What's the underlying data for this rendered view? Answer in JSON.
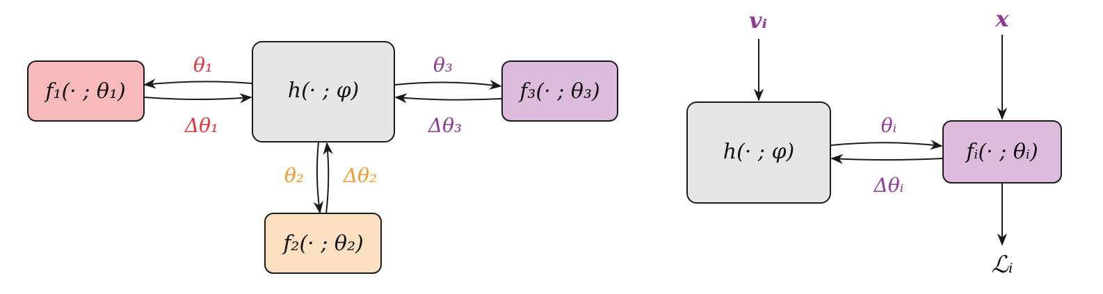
{
  "colors": {
    "box_stroke": "#1a1a1a",
    "h_fill": "#e6e6e6",
    "f1_fill": "#f7b9b9",
    "f2_fill": "#fde0c2",
    "f3_fill": "#dcbbdc",
    "fi_fill": "#dcbbdc",
    "red": "#e8343d",
    "orange": "#f39a2a",
    "purple": "#8e3a96"
  },
  "left_diagram": {
    "hub": {
      "label": "h(· ; φ)"
    },
    "f1": {
      "label": "f₁(· ; θ₁)",
      "param": "θ₁",
      "update": "Δθ₁"
    },
    "f2": {
      "label": "f₂(· ; θ₂)",
      "param": "θ₂",
      "update": "Δθ₂"
    },
    "f3": {
      "label": "f₃(· ; θ₃)",
      "param": "θ₃",
      "update": "Δθ₃"
    }
  },
  "right_diagram": {
    "hub": {
      "label": "h(· ; φ)"
    },
    "fi": {
      "label": "fᵢ(· ; θᵢ)",
      "param": "θᵢ",
      "update": "Δθᵢ"
    },
    "input_v": "vᵢ",
    "input_x": "x",
    "loss": "ℒᵢ"
  }
}
